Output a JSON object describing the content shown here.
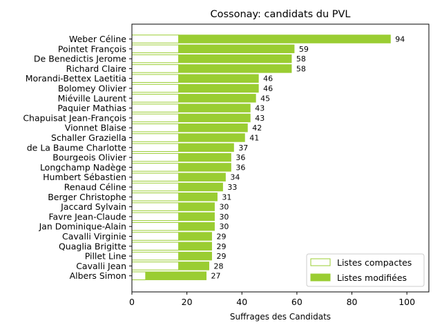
{
  "chart_data": {
    "type": "bar",
    "orientation": "horizontal",
    "stacked": true,
    "title": "Cossonay: candidats du PVL",
    "xlabel": "Suffrages des Candidats",
    "ylabel": "",
    "xlim": [
      0,
      108
    ],
    "xticks": [
      0,
      20,
      40,
      60,
      80,
      100
    ],
    "grid": false,
    "legend_position": "lower-right",
    "colors": {
      "compactes": "#9acd32",
      "modifiees": "#9acd32",
      "compactes_fill": "#ffffff"
    },
    "categories": [
      "Weber Céline",
      "Pointet François",
      "De Benedictis Jerome",
      "Richard Claire",
      "Morandi-Bettex Laetitia",
      "Bolomey Olivier",
      "Miéville Laurent",
      "Paquier Mathias",
      "Chapuisat Jean-François",
      "Vionnet Blaise",
      "Schaller Graziella",
      "de La Baume Charlotte",
      "Bourgeois Olivier",
      "Longchamp Nadège",
      "Humbert Sébastien",
      "Renaud Céline",
      "Berger Christophe",
      "Jaccard Sylvain",
      "Favre Jean-Claude",
      "Jan Dominique-Alain",
      "Cavalli Virginie",
      "Quaglia Brigitte",
      "Pillet Line",
      "Cavalli Jean",
      "Albers Simon"
    ],
    "series": [
      {
        "name": "Listes compactes",
        "style": "outline",
        "values": [
          17,
          17,
          17,
          17,
          17,
          17,
          17,
          17,
          17,
          17,
          17,
          17,
          17,
          17,
          17,
          17,
          17,
          17,
          17,
          17,
          17,
          17,
          17,
          17,
          5
        ]
      },
      {
        "name": "Listes modifiées",
        "style": "filled",
        "values": [
          77,
          42,
          41,
          41,
          29,
          29,
          28,
          26,
          26,
          25,
          24,
          20,
          19,
          19,
          17,
          16,
          14,
          13,
          13,
          13,
          12,
          12,
          12,
          11,
          22
        ]
      }
    ],
    "totals": [
      94,
      59,
      58,
      58,
      46,
      46,
      45,
      43,
      43,
      42,
      41,
      37,
      36,
      36,
      34,
      33,
      31,
      30,
      30,
      30,
      29,
      29,
      29,
      28,
      27
    ],
    "total_labels": [
      "94",
      "59",
      "58",
      "58",
      "46",
      "46",
      "45",
      "43",
      "43",
      "42",
      "41",
      "37",
      "36",
      "36",
      "34",
      "33",
      "31",
      "30",
      "30",
      "30",
      "29",
      "29",
      "29",
      "28",
      "27"
    ],
    "tick_labels": [
      "0",
      "20",
      "40",
      "60",
      "80",
      "100"
    ]
  }
}
